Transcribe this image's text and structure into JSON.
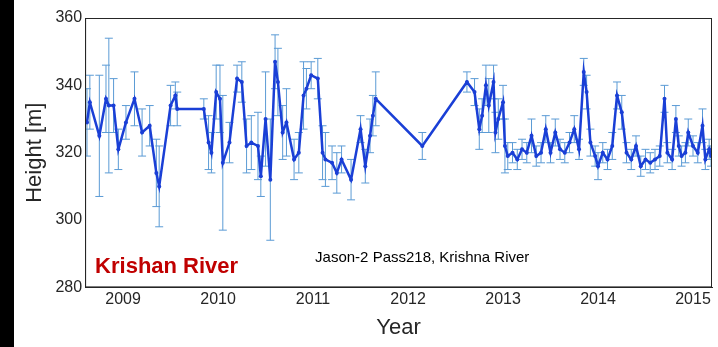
{
  "chart_data": {
    "type": "line",
    "x_label": "Year",
    "y_label": "Height [m]",
    "annotations": [
      "Krishan River",
      "Jason-2 Pass218, Krishna River"
    ],
    "xlim": [
      2008.6,
      2015.2
    ],
    "xticks": [
      2009,
      2010,
      2011,
      2012,
      2013,
      2014,
      2015
    ],
    "ylim": [
      280,
      360
    ],
    "yticks": [
      280,
      300,
      320,
      340,
      360
    ],
    "grid": false,
    "series": [
      {
        "color": "#1a3fd6",
        "marker": "circle",
        "x": [
          2008.62,
          2008.65,
          2008.75,
          2008.82,
          2008.85,
          2008.9,
          2008.95,
          2009.03,
          2009.12,
          2009.2,
          2009.28,
          2009.35,
          2009.38,
          2009.5,
          2009.55,
          2009.57,
          2009.85,
          2009.9,
          2009.93,
          2009.98,
          2010.02,
          2010.05,
          2010.12,
          2010.2,
          2010.25,
          2010.3,
          2010.35,
          2010.42,
          2010.45,
          2010.5,
          2010.55,
          2010.6,
          2010.63,
          2010.68,
          2010.72,
          2010.8,
          2010.85,
          2010.9,
          2010.93,
          2010.98,
          2011.05,
          2011.1,
          2011.13,
          2011.2,
          2011.25,
          2011.3,
          2011.4,
          2011.5,
          2011.55,
          2011.6,
          2011.63,
          2011.66,
          2012.15,
          2012.62,
          2012.7,
          2012.75,
          2012.78,
          2012.82,
          2012.85,
          2012.9,
          2012.92,
          2012.95,
          2013.0,
          2013.02,
          2013.05,
          2013.1,
          2013.15,
          2013.2,
          2013.25,
          2013.3,
          2013.35,
          2013.4,
          2013.45,
          2013.5,
          2013.55,
          2013.6,
          2013.65,
          2013.7,
          2013.75,
          2013.8,
          2013.85,
          2013.88,
          2013.92,
          2013.97,
          2014.0,
          2014.05,
          2014.1,
          2014.15,
          2014.2,
          2014.25,
          2014.3,
          2014.35,
          2014.4,
          2014.45,
          2014.5,
          2014.55,
          2014.6,
          2014.65,
          2014.7,
          2014.73,
          2014.78,
          2014.82,
          2014.85,
          2014.88,
          2014.92,
          2014.95,
          2015.0,
          2015.05,
          2015.1,
          2015.13,
          2015.17,
          2015.19
        ],
        "values": [
          329,
          335,
          325,
          336,
          334,
          334,
          321,
          329,
          336,
          326,
          328,
          314,
          310,
          334,
          337,
          333,
          333,
          323,
          320,
          338,
          336,
          317,
          323,
          342,
          341,
          322,
          323,
          322,
          313,
          330,
          312,
          347,
          341,
          326,
          329,
          318,
          320,
          337,
          339,
          343,
          342,
          320,
          318,
          317,
          314,
          318,
          312,
          327,
          316,
          325,
          331,
          336,
          322,
          341,
          338,
          327,
          331,
          340,
          334,
          341,
          326,
          330,
          335,
          322,
          319,
          320,
          318,
          321,
          320,
          325,
          319,
          320,
          327,
          320,
          326,
          321,
          320,
          323,
          327,
          321,
          344,
          338,
          323,
          319,
          316,
          320,
          318,
          322,
          337,
          332,
          320,
          318,
          322,
          316,
          318,
          317,
          318,
          319,
          336,
          320,
          318,
          330,
          322,
          319,
          320,
          326,
          322,
          320,
          328,
          318,
          321,
          319
        ],
        "errors": [
          10,
          8,
          18,
          10,
          20,
          8,
          6,
          5,
          8,
          7,
          6,
          10,
          12,
          6,
          4,
          5,
          3,
          8,
          6,
          8,
          10,
          20,
          6,
          4,
          6,
          8,
          8,
          10,
          6,
          14,
          18,
          8,
          10,
          8,
          10,
          6,
          6,
          10,
          6,
          4,
          6,
          8,
          8,
          5,
          6,
          4,
          6,
          4,
          5,
          5,
          6,
          8,
          4,
          3,
          4,
          6,
          5,
          6,
          8,
          5,
          6,
          6,
          5,
          8,
          4,
          3,
          3,
          3,
          3,
          5,
          3,
          3,
          4,
          3,
          4,
          3,
          3,
          3,
          4,
          3,
          4,
          5,
          4,
          3,
          4,
          3,
          3,
          4,
          4,
          5,
          3,
          3,
          3,
          3,
          3,
          3,
          3,
          3,
          4,
          3,
          3,
          4,
          3,
          3,
          3,
          4,
          3,
          3,
          5,
          3,
          3,
          3
        ]
      }
    ]
  }
}
